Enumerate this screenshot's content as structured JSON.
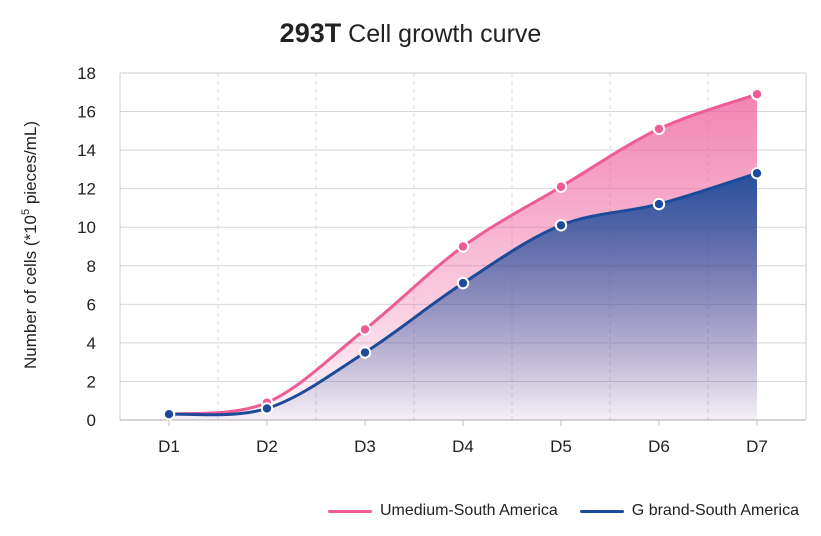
{
  "title_bold": "293T",
  "title_rest": "Cell growth curve",
  "colors": {
    "series1": "#EE5B97",
    "series2": "#1B4B9A",
    "grid": "#D5D8DE",
    "axis": "#CCCCCC"
  },
  "chart_data": {
    "type": "area",
    "categories": [
      "D1",
      "D2",
      "D3",
      "D4",
      "D5",
      "D6",
      "D7"
    ],
    "ylabel_prefix": "Number of cells  (*10",
    "ylabel_sup": "5",
    "ylabel_suffix": " pieces/mL)",
    "ylim": [
      0,
      18
    ],
    "yticks": [
      0,
      2,
      4,
      6,
      8,
      10,
      12,
      14,
      16,
      18
    ],
    "grid": true,
    "legend_position": "bottom-right",
    "series": [
      {
        "name": "Umedium-South America",
        "values": [
          0.3,
          0.9,
          4.7,
          9.0,
          12.1,
          15.1,
          16.9
        ]
      },
      {
        "name": "G brand-South America",
        "values": [
          0.3,
          0.6,
          3.5,
          7.1,
          10.1,
          11.2,
          12.8
        ]
      }
    ]
  }
}
